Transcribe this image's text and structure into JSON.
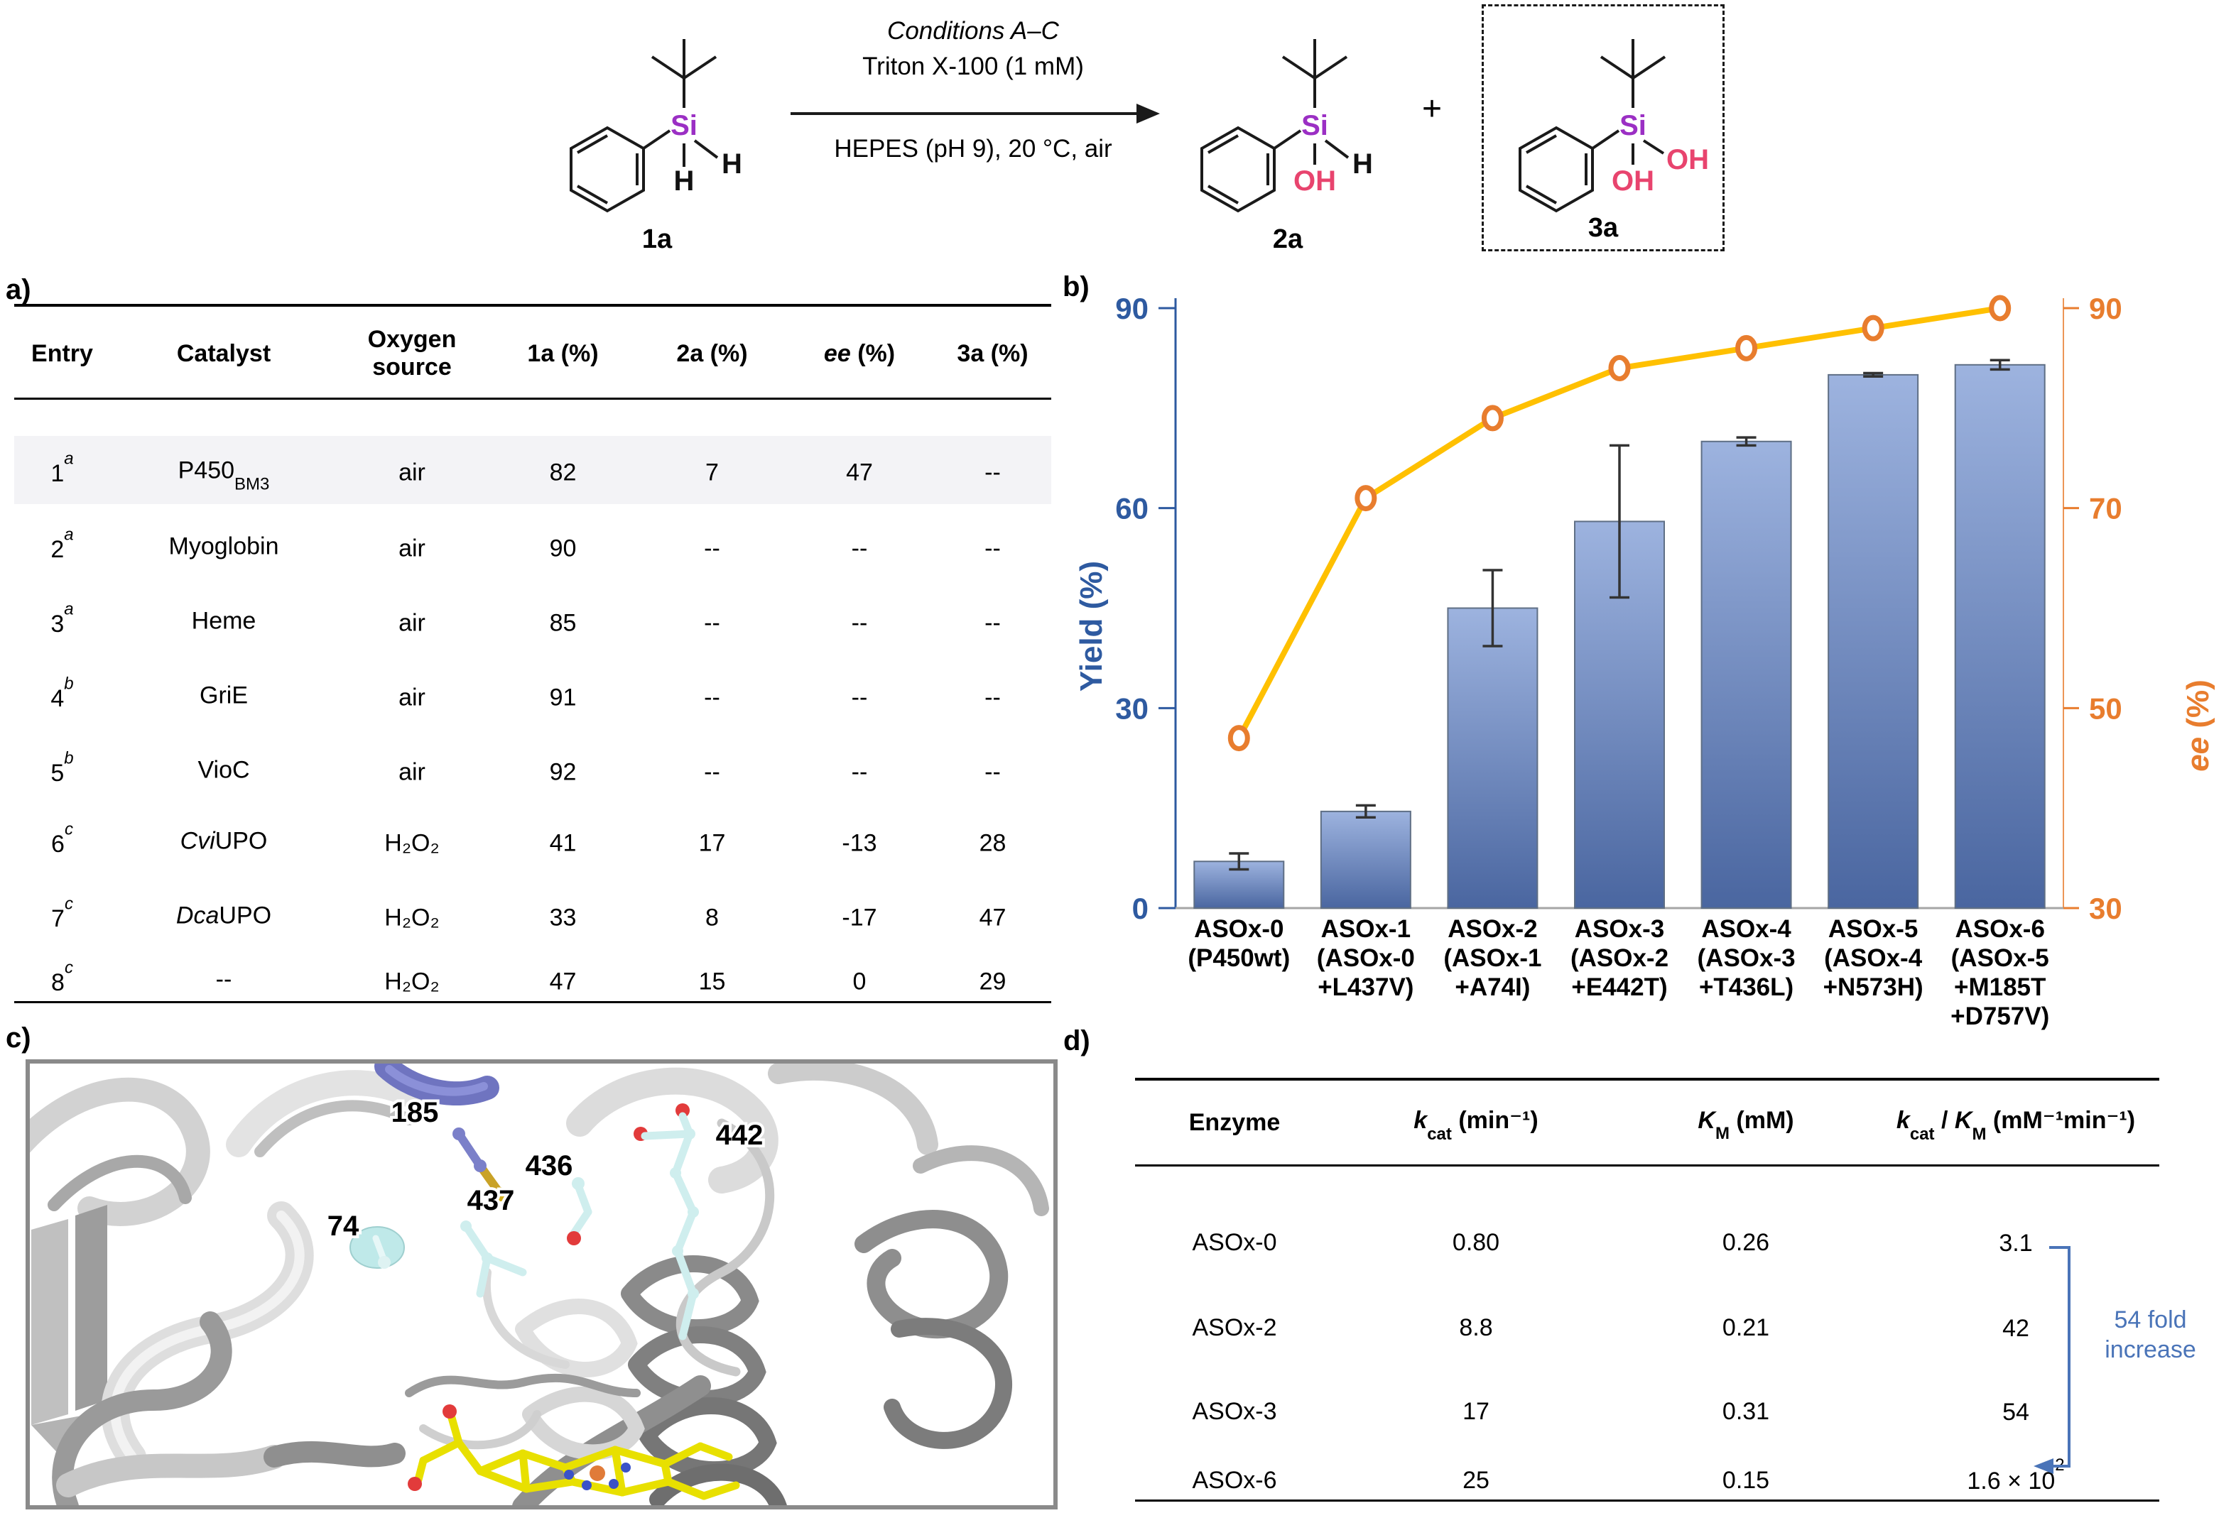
{
  "scheme": {
    "conditions_top_italic": "Conditions A–C",
    "conditions_top": "Triton X-100 (1 mM)",
    "conditions_bottom": "HEPES (pH 9), 20 °C, air",
    "plus": "+",
    "reactant_label": "1a",
    "product1_label": "2a",
    "product2_label": "3a",
    "si": "Si",
    "h": "H",
    "oh": "OH",
    "si_color": "#9B2FC4",
    "oh_color": "#E8446E"
  },
  "panel_a": {
    "label": "a)",
    "headers": {
      "entry": "Entry",
      "catalyst": "Catalyst",
      "oxygen1": "Oxygen",
      "oxygen2": "source",
      "c1a": "1a (%)",
      "c2a": "2a (%)",
      "ee_i": "ee",
      "ee_rest": " (%)",
      "c3a": "3a (%)"
    },
    "rows": [
      {
        "entry": "1",
        "note": "a",
        "cat_pre": "",
        "cat_main": "P450",
        "cat_sub": "BM3",
        "oxygen": "air",
        "v1a": "82",
        "v2a": "7",
        "ee": "47",
        "v3a": "--"
      },
      {
        "entry": "2",
        "note": "a",
        "cat_pre": "",
        "cat_main": "Myoglobin",
        "cat_sub": "",
        "oxygen": "air",
        "v1a": "90",
        "v2a": "--",
        "ee": "--",
        "v3a": "--"
      },
      {
        "entry": "3",
        "note": "a",
        "cat_pre": "",
        "cat_main": "Heme",
        "cat_sub": "",
        "oxygen": "air",
        "v1a": "85",
        "v2a": "--",
        "ee": "--",
        "v3a": "--"
      },
      {
        "entry": "4",
        "note": "b",
        "cat_pre": "",
        "cat_main": "GriE",
        "cat_sub": "",
        "oxygen": "air",
        "v1a": "91",
        "v2a": "--",
        "ee": "--",
        "v3a": "--"
      },
      {
        "entry": "5",
        "note": "b",
        "cat_pre": "",
        "cat_main": "VioC",
        "cat_sub": "",
        "oxygen": "air",
        "v1a": "92",
        "v2a": "--",
        "ee": "--",
        "v3a": "--"
      },
      {
        "entry": "6",
        "note": "c",
        "cat_pre": "Cvi",
        "cat_main": "UPO",
        "cat_sub": "",
        "oxygen": "H₂O₂",
        "v1a": "41",
        "v2a": "17",
        "ee": "-13",
        "v3a": "28"
      },
      {
        "entry": "7",
        "note": "c",
        "cat_pre": "Dca",
        "cat_main": "UPO",
        "cat_sub": "",
        "oxygen": "H₂O₂",
        "v1a": "33",
        "v2a": "8",
        "ee": "-17",
        "v3a": "47"
      },
      {
        "entry": "8",
        "note": "c",
        "cat_pre": "",
        "cat_main": "--",
        "cat_sub": "",
        "oxygen": "H₂O₂",
        "v1a": "47",
        "v2a": "15",
        "ee": "0",
        "v3a": "29"
      }
    ]
  },
  "chart_data": {
    "type": "bar+line",
    "panel_label": "b)",
    "categories": [
      [
        "ASOx-0",
        "(P450wt)"
      ],
      [
        "ASOx-1",
        "(ASOx-0",
        "+L437V)"
      ],
      [
        "ASOx-2",
        "(ASOx-1",
        "+A74I)"
      ],
      [
        "ASOx-3",
        "(ASOx-2",
        "+E442T)"
      ],
      [
        "ASOx-4",
        "(ASOx-3",
        "+T436L)"
      ],
      [
        "ASOx-5",
        "(ASOx-4",
        "+N573H)"
      ],
      [
        "ASOx-6",
        "(ASOx-5",
        "+M185T",
        "+D757V)"
      ]
    ],
    "series": [
      {
        "name": "Yield",
        "type": "bar",
        "values": [
          7,
          14.5,
          45,
          58,
          70,
          80,
          81.5
        ],
        "errors": [
          1.2,
          0.9,
          5.7,
          11.4,
          0.6,
          0.25,
          0.7
        ]
      },
      {
        "name": "ee",
        "type": "line",
        "values": [
          47,
          71,
          79,
          84,
          86,
          88,
          90
        ]
      }
    ],
    "left_axis": {
      "label": "Yield (%)",
      "min": 0,
      "max": 90,
      "ticks": [
        "0",
        "30",
        "60",
        "90"
      ]
    },
    "right_axis": {
      "label_italic": "ee",
      "label_rest": " (%)",
      "min": 30,
      "max": 90,
      "ticks": [
        "30",
        "50",
        "70",
        "90"
      ]
    },
    "legend_position": "none",
    "grid": false,
    "colors": {
      "bar_top": "#9DB3DF",
      "bar_bottom": "#4A66A0",
      "bar_edge": "#5f6f85",
      "line": "#FFC000",
      "marker": "#E87D2E",
      "left": "#2E5AA0",
      "right": "#E87D2E",
      "baseline": "#a6a6a6",
      "error": "#333333"
    }
  },
  "panel_c": {
    "label": "c)",
    "residues": [
      "185",
      "74",
      "437",
      "436",
      "442"
    ]
  },
  "panel_d": {
    "label": "d)",
    "headers": {
      "enzyme": "Enzyme",
      "kcat_k": "k",
      "kcat_sub": "cat",
      "kcat_rest": " (min⁻¹)",
      "km_K": "K",
      "km_sub": "M",
      "km_rest": " (mM)",
      "ratio_k": "k",
      "ratio_ksub": "cat",
      "ratio_mid": " / ",
      "ratio_K": "K",
      "ratio_Ksub": "M",
      "ratio_rest": " (mM⁻¹min⁻¹)"
    },
    "rows": [
      {
        "enzyme": "ASOx-0",
        "kcat": "0.80",
        "km": "0.26",
        "ratio": "3.1",
        "ratio_sup": ""
      },
      {
        "enzyme": "ASOx-2",
        "kcat": "8.8",
        "km": "0.21",
        "ratio": "42",
        "ratio_sup": ""
      },
      {
        "enzyme": "ASOx-3",
        "kcat": "17",
        "km": "0.31",
        "ratio": "54",
        "ratio_sup": ""
      },
      {
        "enzyme": "ASOx-6",
        "kcat": "25",
        "km": "0.15",
        "ratio": "1.6 × 10",
        "ratio_sup": "2"
      }
    ],
    "annotation_line1": "54 fold",
    "annotation_line2": "increase"
  }
}
